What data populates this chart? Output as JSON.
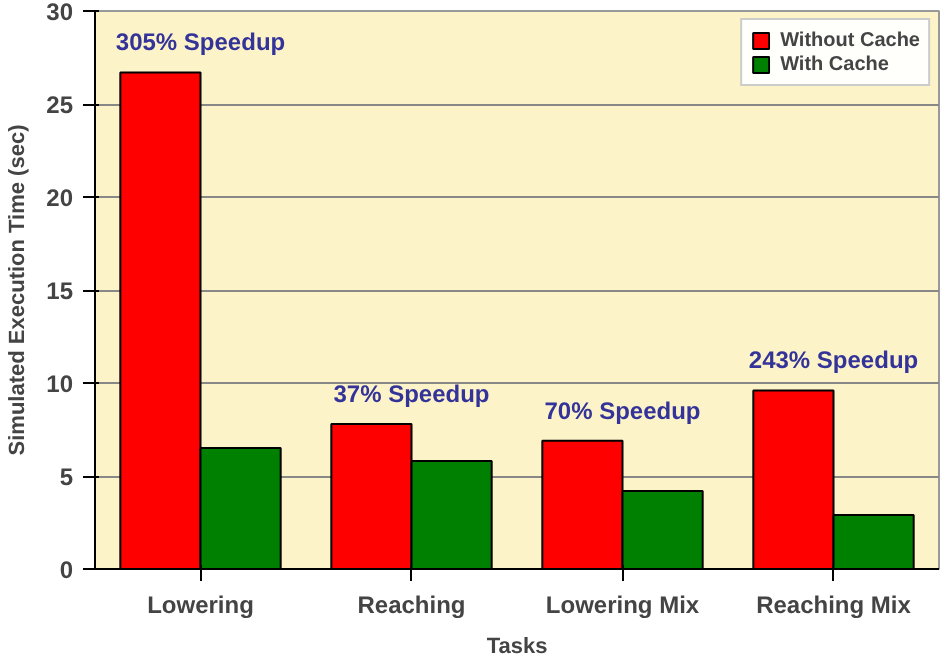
{
  "chart_data": {
    "type": "bar",
    "xlabel": "Tasks",
    "ylabel": "Simulated Execution Time (sec)",
    "categories": [
      "Lowering",
      "Reaching",
      "Lowering Mix",
      "Reaching Mix"
    ],
    "series": [
      {
        "name": "Without Cache",
        "color": "#ff0000",
        "values": [
          26.7,
          7.8,
          6.9,
          9.6
        ]
      },
      {
        "name": "With Cache",
        "color": "#008000",
        "values": [
          6.5,
          5.8,
          4.2,
          2.9
        ]
      }
    ],
    "ylim": [
      0,
      30
    ],
    "yticks": [
      0,
      5,
      10,
      15,
      20,
      25,
      30
    ],
    "grid": "y",
    "legend": "top right",
    "annotations": [
      {
        "text": "305% Speedup",
        "x": "Lowering",
        "y": 26.7
      },
      {
        "text": "37% Speedup",
        "x": "Reaching",
        "y": 7.8
      },
      {
        "text": "70% Speedup",
        "x": "Lowering Mix",
        "y": 6.9
      },
      {
        "text": "243% Speedup",
        "x": "Reaching Mix",
        "y": 9.6
      }
    ]
  }
}
